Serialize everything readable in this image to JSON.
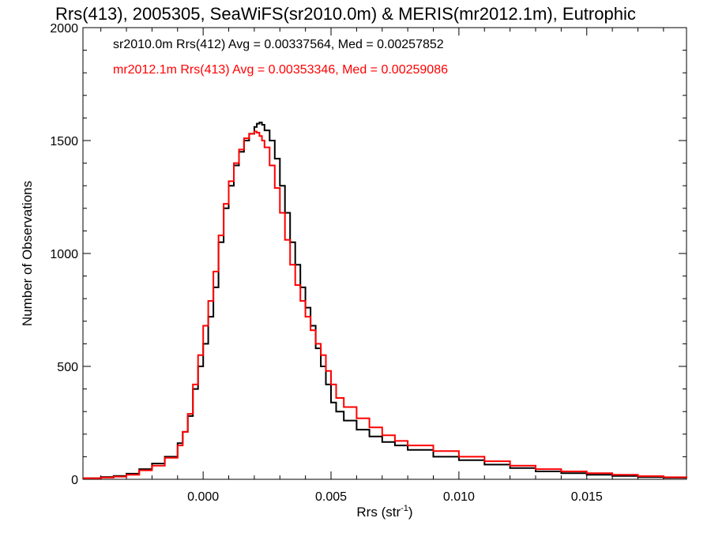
{
  "chart_data": {
    "type": "line",
    "title": "Rrs(413), 2005305, SeaWiFS(sr2010.0m) & MERIS(mr2012.1m), Eutrophic",
    "xlabel": "Rrs (str",
    "xlabel_sup": "-1",
    "xlabel_end": ")",
    "ylabel": "Number of Observations",
    "xlim": [
      -0.0047,
      0.0189
    ],
    "ylim": [
      0,
      2000
    ],
    "x_ticks": [
      {
        "value": 0.0,
        "label": "0.000"
      },
      {
        "value": 0.005,
        "label": "0.005"
      },
      {
        "value": 0.01,
        "label": "0.010"
      },
      {
        "value": 0.015,
        "label": "0.015"
      }
    ],
    "y_ticks": [
      {
        "value": 0,
        "label": "0"
      },
      {
        "value": 500,
        "label": "500"
      },
      {
        "value": 1000,
        "label": "1000"
      },
      {
        "value": 1500,
        "label": "1500"
      },
      {
        "value": 2000,
        "label": "2000"
      }
    ],
    "grid": false,
    "legend_position": "top-left",
    "series": [
      {
        "name": "sr2010.0m Rrs(412) Avg = 0.00337564, Med = 0.00257852",
        "color": "#000000",
        "x": [
          -0.0047,
          -0.004,
          -0.0035,
          -0.003,
          -0.0025,
          -0.002,
          -0.0015,
          -0.001,
          -0.0008,
          -0.0006,
          -0.0004,
          -0.0002,
          0.0,
          0.0002,
          0.0004,
          0.0006,
          0.0008,
          0.001,
          0.0012,
          0.0014,
          0.0016,
          0.0018,
          0.002,
          0.0021,
          0.0022,
          0.0023,
          0.0024,
          0.0026,
          0.0028,
          0.003,
          0.0032,
          0.0034,
          0.0036,
          0.0038,
          0.004,
          0.0042,
          0.0044,
          0.0046,
          0.0048,
          0.005,
          0.0052,
          0.0055,
          0.006,
          0.0065,
          0.007,
          0.0075,
          0.008,
          0.009,
          0.01,
          0.011,
          0.012,
          0.013,
          0.014,
          0.015,
          0.016,
          0.017,
          0.018,
          0.0189
        ],
        "y": [
          5,
          10,
          15,
          25,
          45,
          70,
          100,
          160,
          210,
          280,
          400,
          500,
          600,
          720,
          850,
          1050,
          1200,
          1300,
          1390,
          1450,
          1500,
          1530,
          1560,
          1575,
          1580,
          1570,
          1545,
          1500,
          1420,
          1300,
          1180,
          1050,
          950,
          850,
          760,
          680,
          580,
          500,
          420,
          340,
          300,
          260,
          220,
          190,
          165,
          150,
          130,
          100,
          85,
          65,
          50,
          35,
          27,
          20,
          15,
          10,
          7,
          5
        ]
      },
      {
        "name": "mr2012.1m Rrs(413) Avg = 0.00353346, Med = 0.00259086",
        "color": "#ff0000",
        "x": [
          -0.0047,
          -0.004,
          -0.0035,
          -0.003,
          -0.0025,
          -0.002,
          -0.0015,
          -0.001,
          -0.0008,
          -0.0006,
          -0.0004,
          -0.0002,
          0.0,
          0.0002,
          0.0004,
          0.0006,
          0.0008,
          0.001,
          0.0012,
          0.0014,
          0.0016,
          0.0018,
          0.002,
          0.0021,
          0.0022,
          0.0023,
          0.0024,
          0.0026,
          0.0028,
          0.003,
          0.0032,
          0.0034,
          0.0036,
          0.0038,
          0.004,
          0.0042,
          0.0044,
          0.0046,
          0.0048,
          0.005,
          0.0052,
          0.0055,
          0.006,
          0.0065,
          0.007,
          0.0075,
          0.008,
          0.009,
          0.01,
          0.011,
          0.012,
          0.013,
          0.014,
          0.015,
          0.016,
          0.017,
          0.018,
          0.0189
        ],
        "y": [
          5,
          8,
          12,
          20,
          40,
          60,
          95,
          150,
          210,
          290,
          420,
          550,
          680,
          790,
          920,
          1080,
          1220,
          1320,
          1400,
          1460,
          1510,
          1530,
          1540,
          1535,
          1520,
          1500,
          1470,
          1390,
          1290,
          1180,
          1060,
          950,
          860,
          790,
          720,
          660,
          600,
          550,
          480,
          420,
          360,
          320,
          270,
          230,
          195,
          170,
          150,
          125,
          100,
          80,
          60,
          45,
          35,
          27,
          20,
          14,
          9,
          6
        ]
      }
    ]
  }
}
